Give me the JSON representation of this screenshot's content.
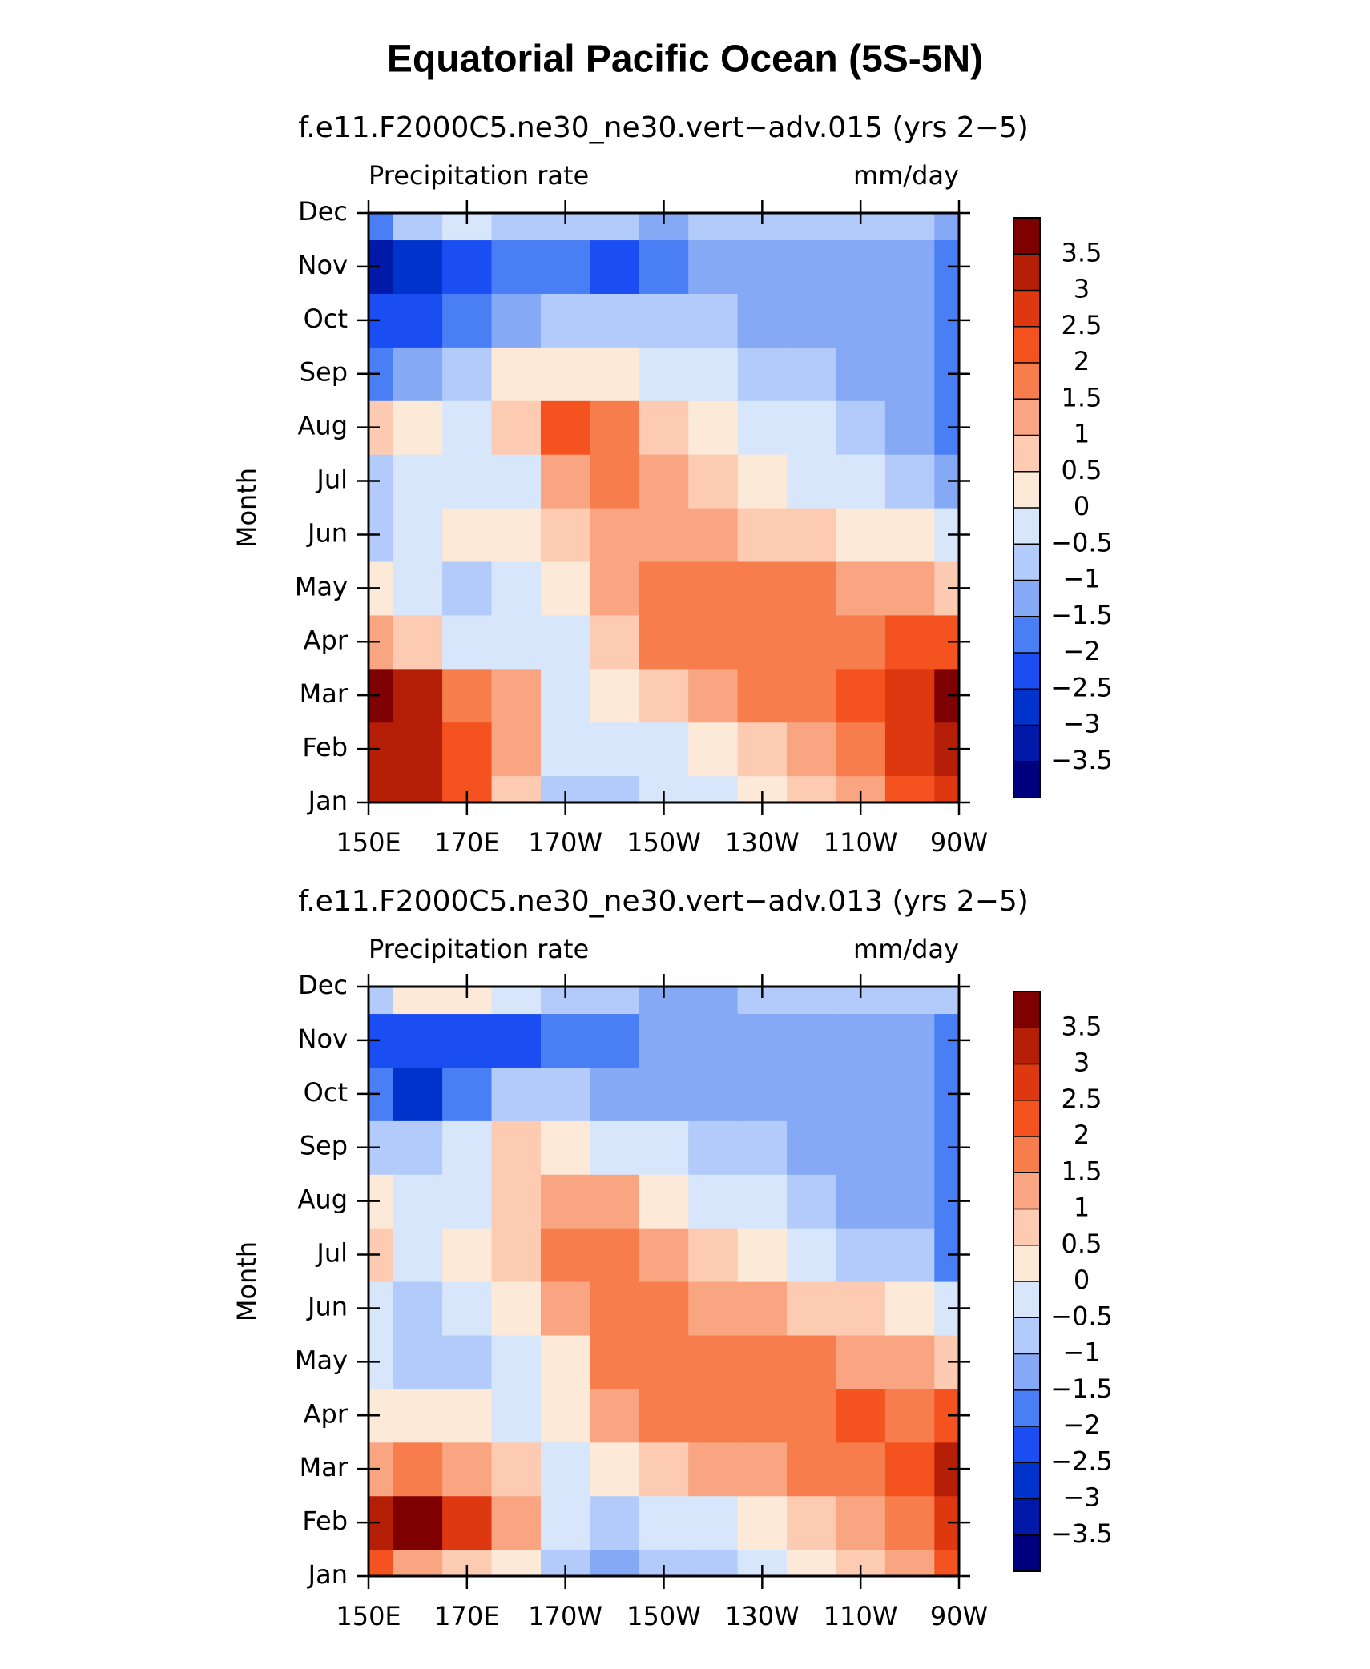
{
  "title": "Equatorial Pacific Ocean (5S-5N)",
  "chart_data": [
    {
      "type": "contour",
      "subtitle": "f.e11.F2000C5.ne30_ne30.vert−adv.015 (yrs 2−5)",
      "left_string": "Precipitation rate",
      "right_string": "mm/day",
      "ylabel": "Month",
      "x": [
        150,
        160,
        170,
        180,
        190,
        200,
        210,
        220,
        230,
        240,
        250,
        260,
        270
      ],
      "categories": [
        "Jan",
        "Feb",
        "Mar",
        "Apr",
        "May",
        "Jun",
        "Jul",
        "Aug",
        "Sep",
        "Oct",
        "Nov",
        "Dec"
      ],
      "values": [
        [
          3.0,
          3.2,
          2.0,
          0.8,
          -0.7,
          -0.8,
          -0.3,
          -0.2,
          0.3,
          0.7,
          1.2,
          2.0,
          2.5
        ],
        [
          3.4,
          3.0,
          2.2,
          1.3,
          -0.3,
          -0.3,
          -0.2,
          0.3,
          0.8,
          1.2,
          1.7,
          2.5,
          3.4
        ],
        [
          3.6,
          3.0,
          1.8,
          1.2,
          -0.2,
          0.2,
          0.7,
          1.2,
          1.6,
          1.8,
          2.3,
          2.8,
          3.6
        ],
        [
          1.0,
          0.5,
          -0.3,
          -0.2,
          -0.2,
          0.7,
          1.6,
          1.8,
          1.8,
          1.9,
          1.8,
          2.0,
          2.2
        ],
        [
          0.2,
          -0.3,
          -0.6,
          -0.3,
          0.1,
          1.1,
          1.8,
          1.8,
          1.6,
          1.5,
          1.3,
          1.0,
          0.5
        ],
        [
          -0.7,
          -0.3,
          0.3,
          0.2,
          0.5,
          1.3,
          1.3,
          1.1,
          0.8,
          0.5,
          0.3,
          0.0,
          -0.3
        ],
        [
          -0.6,
          -0.2,
          -0.3,
          -0.2,
          1.0,
          1.6,
          1.2,
          0.7,
          0.3,
          -0.1,
          -0.4,
          -0.8,
          -1.5
        ],
        [
          0.6,
          0.1,
          -0.2,
          0.6,
          2.1,
          1.5,
          0.8,
          0.3,
          -0.2,
          -0.5,
          -0.8,
          -1.2,
          -1.7
        ],
        [
          -1.7,
          -1.5,
          -0.8,
          0.0,
          0.4,
          0.3,
          -0.1,
          -0.5,
          -0.7,
          -0.9,
          -1.3,
          -1.3,
          -1.7
        ],
        [
          -2.2,
          -2.1,
          -1.6,
          -1.2,
          -0.9,
          -0.8,
          -0.9,
          -1.0,
          -1.1,
          -1.3,
          -1.4,
          -1.5,
          -2.0
        ],
        [
          -3.4,
          -2.8,
          -2.3,
          -1.8,
          -1.7,
          -2.1,
          -1.6,
          -1.3,
          -1.2,
          -1.2,
          -1.2,
          -1.4,
          -2.0
        ],
        [
          -2.0,
          -0.8,
          -0.4,
          -0.6,
          -1.0,
          -1.0,
          -1.2,
          -1.0,
          -1.0,
          -0.8,
          -0.8,
          -0.8,
          -1.2
        ]
      ],
      "xlim": [
        150,
        270
      ],
      "xticks": [
        {
          "value": 150,
          "label": "150E"
        },
        {
          "value": 170,
          "label": "170E"
        },
        {
          "value": 190,
          "label": "170W"
        },
        {
          "value": 210,
          "label": "150W"
        },
        {
          "value": 230,
          "label": "130W"
        },
        {
          "value": 250,
          "label": "110W"
        },
        {
          "value": 270,
          "label": "90W"
        }
      ],
      "levels": [
        {
          "value": -3.5,
          "label": "−3.5"
        },
        {
          "value": -3,
          "label": "−3"
        },
        {
          "value": -2.5,
          "label": "−2.5"
        },
        {
          "value": -2,
          "label": "−2"
        },
        {
          "value": -1.5,
          "label": "−1.5"
        },
        {
          "value": -1,
          "label": "−1"
        },
        {
          "value": -0.5,
          "label": "−0.5"
        },
        0,
        0.5,
        1,
        1.5,
        2,
        2.5,
        3,
        3.5
      ],
      "colors": [
        "#00007f",
        "#0019a8",
        "#0033cc",
        "#1a4df2",
        "#4a7ef5",
        "#85a9f5",
        "#b3cbfa",
        "#d8e6fb",
        "#fde9d8",
        "#fccbb2",
        "#f9a582",
        "#f77d4c",
        "#f45320",
        "#dd3810",
        "#b51f08",
        "#7f0000"
      ]
    },
    {
      "type": "contour",
      "subtitle": "f.e11.F2000C5.ne30_ne30.vert−adv.013 (yrs 2−5)",
      "left_string": "Precipitation rate",
      "right_string": "mm/day",
      "ylabel": "Month",
      "x": [
        150,
        160,
        170,
        180,
        190,
        200,
        210,
        220,
        230,
        240,
        250,
        260,
        270
      ],
      "categories": [
        "Jan",
        "Feb",
        "Mar",
        "Apr",
        "May",
        "Jun",
        "Jul",
        "Aug",
        "Sep",
        "Oct",
        "Nov",
        "Dec"
      ],
      "values": [
        [
          2.0,
          1.4,
          0.8,
          0.4,
          -0.6,
          -1.2,
          -0.8,
          -0.6,
          -0.3,
          0.0,
          0.5,
          1.2,
          2.0
        ],
        [
          3.2,
          3.6,
          2.5,
          1.0,
          -0.3,
          -0.7,
          -0.5,
          -0.1,
          0.3,
          0.7,
          1.2,
          1.8,
          2.8
        ],
        [
          1.2,
          1.8,
          1.2,
          0.5,
          -0.2,
          0.2,
          0.7,
          1.0,
          1.3,
          1.5,
          1.6,
          2.3,
          3.0
        ],
        [
          0.3,
          0.4,
          0.2,
          -0.1,
          0.4,
          1.2,
          1.6,
          1.9,
          1.9,
          1.8,
          2.2,
          1.8,
          2.0
        ],
        [
          -0.5,
          -0.7,
          -0.8,
          -0.4,
          0.4,
          1.5,
          1.7,
          1.9,
          1.8,
          1.6,
          1.4,
          1.1,
          0.9
        ],
        [
          -0.3,
          -0.7,
          -0.3,
          0.3,
          1.0,
          1.6,
          1.5,
          1.2,
          1.0,
          0.7,
          0.5,
          0.1,
          -0.2
        ],
        [
          0.6,
          -0.2,
          0.1,
          0.7,
          1.7,
          1.6,
          1.0,
          0.5,
          0.1,
          -0.3,
          -0.6,
          -1.0,
          -1.8
        ],
        [
          0.3,
          -0.4,
          -0.3,
          0.6,
          1.2,
          1.0,
          0.3,
          -0.2,
          -0.5,
          -0.8,
          -1.2,
          -1.5,
          -1.9
        ],
        [
          -0.6,
          -0.9,
          -0.2,
          0.7,
          0.4,
          -0.1,
          -0.5,
          -0.8,
          -1.0,
          -1.1,
          -1.3,
          -1.5,
          -2.0
        ],
        [
          -1.7,
          -2.6,
          -2.0,
          -1.0,
          -0.9,
          -1.3,
          -1.3,
          -1.3,
          -1.3,
          -1.3,
          -1.3,
          -1.5,
          -2.0
        ],
        [
          -2.2,
          -2.4,
          -2.1,
          -2.2,
          -1.7,
          -1.6,
          -1.4,
          -1.3,
          -1.2,
          -1.2,
          -1.2,
          -1.4,
          -1.8
        ],
        [
          -0.6,
          0.4,
          0.3,
          -0.5,
          -0.9,
          -1.0,
          -1.1,
          -1.1,
          -1.0,
          -0.9,
          -0.8,
          -0.7,
          -0.9
        ]
      ],
      "xlim": [
        150,
        270
      ],
      "xticks": [
        {
          "value": 150,
          "label": "150E"
        },
        {
          "value": 170,
          "label": "170E"
        },
        {
          "value": 190,
          "label": "170W"
        },
        {
          "value": 210,
          "label": "150W"
        },
        {
          "value": 230,
          "label": "130W"
        },
        {
          "value": 250,
          "label": "110W"
        },
        {
          "value": 270,
          "label": "90W"
        }
      ],
      "levels": [
        {
          "value": -3.5,
          "label": "−3.5"
        },
        {
          "value": -3,
          "label": "−3"
        },
        {
          "value": -2.5,
          "label": "−2.5"
        },
        {
          "value": -2,
          "label": "−2"
        },
        {
          "value": -1.5,
          "label": "−1.5"
        },
        {
          "value": -1,
          "label": "−1"
        },
        {
          "value": -0.5,
          "label": "−0.5"
        },
        0,
        0.5,
        1,
        1.5,
        2,
        2.5,
        3,
        3.5
      ],
      "colors": [
        "#00007f",
        "#0019a8",
        "#0033cc",
        "#1a4df2",
        "#4a7ef5",
        "#85a9f5",
        "#b3cbfa",
        "#d8e6fb",
        "#fde9d8",
        "#fccbb2",
        "#f9a582",
        "#f77d4c",
        "#f45320",
        "#dd3810",
        "#b51f08",
        "#7f0000"
      ]
    }
  ]
}
